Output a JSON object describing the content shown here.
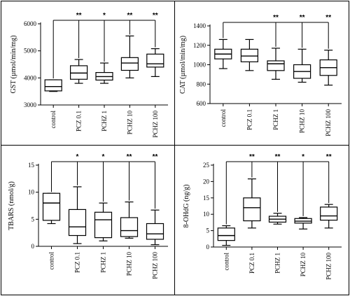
{
  "chart_data": [
    {
      "type": "box",
      "id": "gst",
      "ylabel": "GST (µmol/min/mg)",
      "ylim": [
        3000,
        6000
      ],
      "yticks": [
        3000,
        4000,
        5000,
        6000
      ],
      "categories": [
        "control",
        "PCZ 0.1",
        "PCHZ 1",
        "PCHZ 10",
        "PCHZ 100"
      ],
      "boxes": [
        {
          "min": 3500,
          "q1": 3520,
          "median": 3680,
          "q3": 3930,
          "max": 3930
        },
        {
          "min": 3800,
          "q1": 3950,
          "median": 4180,
          "q3": 4450,
          "max": 4680
        },
        {
          "min": 3800,
          "q1": 3920,
          "median": 4050,
          "q3": 4200,
          "max": 4550
        },
        {
          "min": 4000,
          "q1": 4280,
          "median": 4550,
          "q3": 4750,
          "max": 5550
        },
        {
          "min": 4050,
          "q1": 4400,
          "median": 4520,
          "q3": 4880,
          "max": 5080
        }
      ],
      "significance": [
        "",
        "**",
        "*",
        "**",
        "**"
      ]
    },
    {
      "type": "box",
      "id": "cat",
      "ylabel": "CAT (µmol/min/mg)",
      "ylim": [
        600,
        1400
      ],
      "yticks": [
        600,
        800,
        1000,
        1200,
        1400
      ],
      "categories": [
        "control",
        "PCZ 0.1",
        "PCHZ 1",
        "PCHZ 10",
        "PCHZ 100"
      ],
      "boxes": [
        {
          "min": 960,
          "q1": 1060,
          "median": 1110,
          "q3": 1160,
          "max": 1260
        },
        {
          "min": 940,
          "q1": 1030,
          "median": 1090,
          "q3": 1160,
          "max": 1260
        },
        {
          "min": 850,
          "q1": 940,
          "median": 1010,
          "q3": 1040,
          "max": 1170
        },
        {
          "min": 820,
          "q1": 860,
          "median": 930,
          "q3": 1000,
          "max": 1160
        },
        {
          "min": 790,
          "q1": 890,
          "median": 970,
          "q3": 1050,
          "max": 1150
        }
      ],
      "significance": [
        "",
        "",
        "**",
        "**",
        "**"
      ]
    },
    {
      "type": "box",
      "id": "tbars",
      "ylabel": "TBARS (nmol/g)",
      "ylim": [
        0,
        15
      ],
      "yticks": [
        0,
        5,
        10,
        15
      ],
      "categories": [
        "control",
        "PCZ 0.1",
        "PCHZ 1",
        "PCHZ 10",
        "PCHZ 100"
      ],
      "boxes": [
        {
          "min": 4.2,
          "q1": 4.8,
          "median": 8.0,
          "q3": 9.8,
          "max": 9.8
        },
        {
          "min": 0.5,
          "q1": 2.0,
          "median": 3.6,
          "q3": 6.8,
          "max": 11.0
        },
        {
          "min": 1.0,
          "q1": 1.6,
          "median": 4.9,
          "q3": 6.3,
          "max": 8.0
        },
        {
          "min": 1.5,
          "q1": 1.8,
          "median": 2.9,
          "q3": 5.3,
          "max": 8.2
        },
        {
          "min": 0.3,
          "q1": 1.3,
          "median": 2.3,
          "q3": 4.2,
          "max": 6.7
        }
      ],
      "significance": [
        "",
        "*",
        "*",
        "**",
        "**"
      ]
    },
    {
      "type": "box",
      "id": "ohdg",
      "ylabel": "8-OHdG (ng/g)",
      "ylim": [
        0,
        25
      ],
      "yticks": [
        0,
        5,
        10,
        15,
        20,
        25
      ],
      "categories": [
        "control",
        "PCZ 0.1",
        "PCHZ 1",
        "PCHZ 10",
        "PCHZ 100"
      ],
      "boxes": [
        {
          "min": 0.5,
          "q1": 2.0,
          "median": 3.5,
          "q3": 5.8,
          "max": 6.5
        },
        {
          "min": 5.8,
          "q1": 8.0,
          "median": 12.0,
          "q3": 15.0,
          "max": 20.8
        },
        {
          "min": 7.0,
          "q1": 7.6,
          "median": 8.5,
          "q3": 9.4,
          "max": 10.3
        },
        {
          "min": 5.5,
          "q1": 7.3,
          "median": 7.9,
          "q3": 8.7,
          "max": 9.0
        },
        {
          "min": 5.8,
          "q1": 8.2,
          "median": 9.5,
          "q3": 12.2,
          "max": 13.0
        }
      ],
      "significance": [
        "",
        "**",
        "**",
        "*",
        "**"
      ]
    }
  ]
}
